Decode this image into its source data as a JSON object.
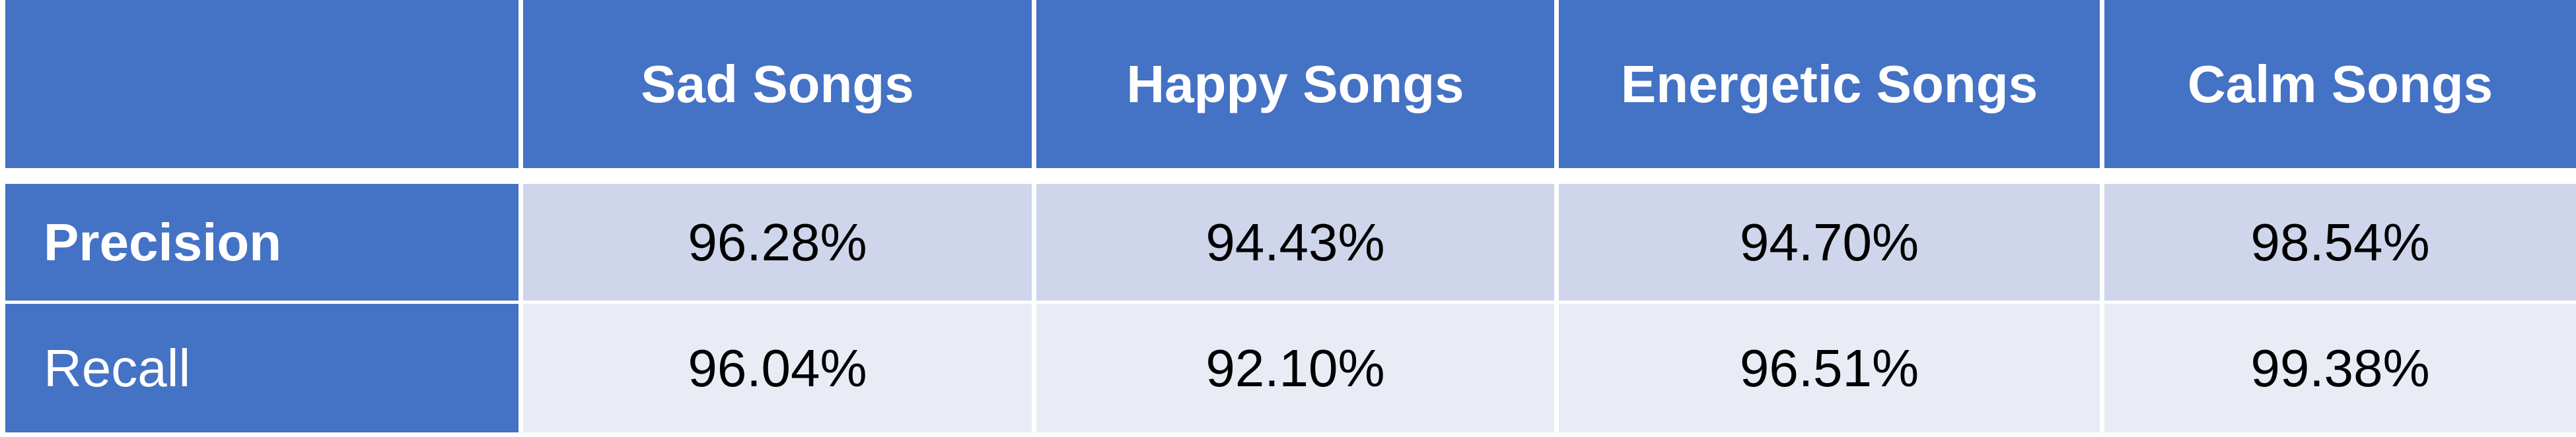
{
  "table": {
    "headers": [
      "",
      "Sad Songs",
      "Happy Songs",
      "Energetic Songs",
      "Calm Songs"
    ],
    "rows": [
      {
        "label": "Precision",
        "values": [
          "96.28%",
          "94.43%",
          "94.70%",
          "98.54%"
        ]
      },
      {
        "label": "Recall",
        "values": [
          "96.04%",
          "92.10%",
          "96.51%",
          "99.38%"
        ]
      }
    ]
  },
  "colors": {
    "header_bg": "#4472c4",
    "row1_bg": "#cfd5ea",
    "row2_bg": "#e9ebf5",
    "header_text": "#ffffff"
  }
}
